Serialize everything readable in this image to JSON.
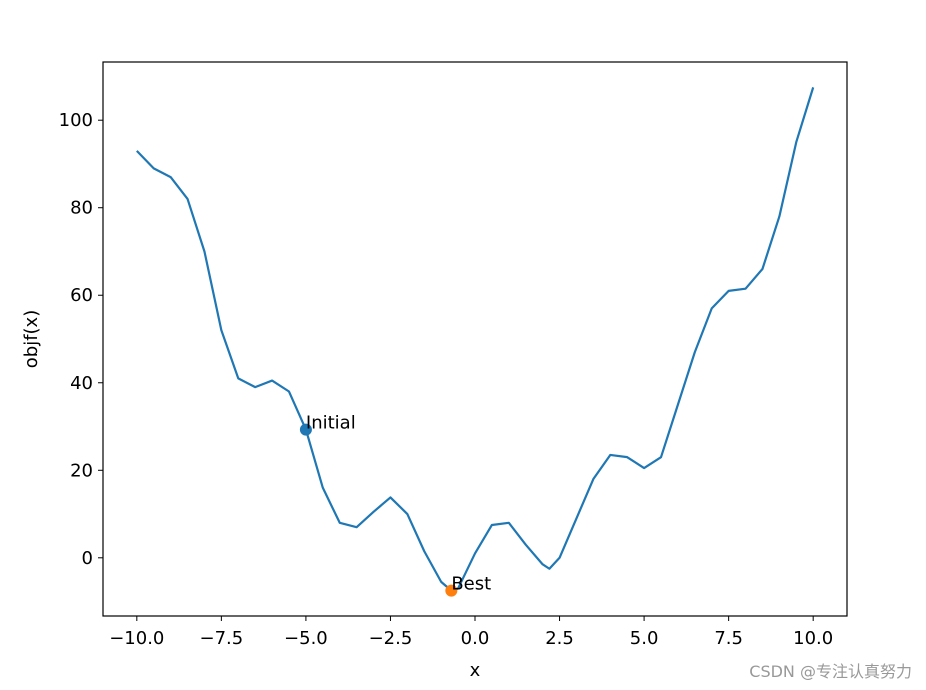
{
  "chart_data": {
    "type": "line",
    "xlabel": "x",
    "ylabel": "objf(x)",
    "x": [
      -10,
      -9.5,
      -9,
      -8.5,
      -8,
      -7.5,
      -7,
      -6.5,
      -6,
      -5.5,
      -5,
      -4.5,
      -4,
      -3.5,
      -3,
      -2.5,
      -2,
      -1.5,
      -1,
      -0.7,
      -0.5,
      0,
      0.5,
      1,
      1.5,
      2,
      2.2,
      2.5,
      3,
      3.5,
      4,
      4.5,
      5,
      5.5,
      6,
      6.5,
      7,
      7.5,
      8,
      8.5,
      9,
      9.5,
      10
    ],
    "series": [
      {
        "color": "#1f77b4",
        "values": [
          93,
          89,
          87,
          82,
          70,
          52,
          41,
          39,
          40.5,
          38,
          29.3,
          16,
          8,
          7,
          10.5,
          13.8,
          10,
          1.5,
          -5.5,
          -7.5,
          -7,
          1,
          7.5,
          8,
          3,
          -1.5,
          -2.5,
          0,
          9,
          18,
          23.5,
          23,
          20.5,
          23,
          35,
          47,
          57,
          61,
          61.5,
          66,
          78,
          95,
          107.5
        ]
      }
    ],
    "points": [
      {
        "label": "Initial",
        "x": -5,
        "y": 29.3,
        "color": "#1f77b4"
      },
      {
        "label": "Best",
        "x": -0.7,
        "y": -7.5,
        "color": "#ff7f0e"
      }
    ],
    "xlim": [
      -11,
      11
    ],
    "ylim": [
      -13.3,
      113.3
    ],
    "xticks": [
      {
        "value": -10,
        "label": "−10.0"
      },
      {
        "value": -7.5,
        "label": "−7.5"
      },
      {
        "value": -5,
        "label": "−5.0"
      },
      {
        "value": -2.5,
        "label": "−2.5"
      },
      {
        "value": 0,
        "label": "0.0"
      },
      {
        "value": 2.5,
        "label": "2.5"
      },
      {
        "value": 5,
        "label": "5.0"
      },
      {
        "value": 7.5,
        "label": "7.5"
      },
      {
        "value": 10,
        "label": "10.0"
      }
    ],
    "yticks": [
      0,
      20,
      40,
      60,
      80,
      100
    ],
    "grid": false
  },
  "watermark": "CSDN @专注认真努力"
}
